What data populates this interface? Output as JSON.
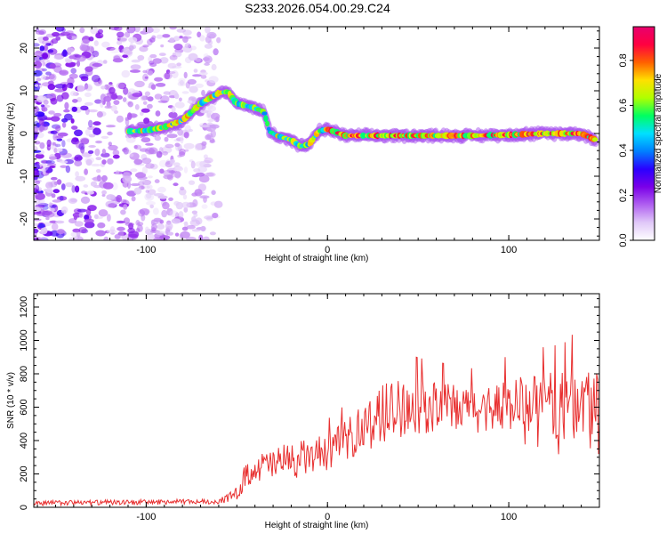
{
  "title": "S233.2026.054.00.29.C24",
  "chart_data": [
    {
      "type": "heatmap",
      "name": "spectrogram",
      "xlabel": "Height of straight line (km)",
      "ylabel": "Frequency (Hz)",
      "xlim": [
        -162,
        150
      ],
      "ylim": [
        -25,
        25
      ],
      "xticks": [
        -100,
        0,
        100
      ],
      "yticks": [
        20,
        10,
        0,
        -10,
        -20
      ],
      "colorbar": {
        "label": "Normalized spectral amplitude",
        "range": [
          0,
          0.95
        ],
        "ticks": [
          0.0,
          0.2,
          0.4,
          0.6,
          0.8
        ],
        "colormap": [
          "#ffffff",
          "#e0c8f8",
          "#b060f0",
          "#7a00e8",
          "#2a00ff",
          "#0080ff",
          "#00e0ff",
          "#00ff60",
          "#b0ff00",
          "#ffe000",
          "#ff6000",
          "#ff0040",
          "#e8006e"
        ]
      },
      "ridge": {
        "description_points_x": [
          -110,
          -100,
          -90,
          -80,
          -70,
          -60,
          -55,
          -50,
          -45,
          -40,
          -35,
          -32,
          -28,
          -20,
          -15,
          -10,
          -5,
          0,
          10,
          20,
          40,
          60,
          80,
          100,
          120,
          140,
          148
        ],
        "description_points_y": [
          0.5,
          0.7,
          1.5,
          3.0,
          7.0,
          9.5,
          9.8,
          7.0,
          6.5,
          6.0,
          5.0,
          0.5,
          -0.5,
          -1.5,
          -3.0,
          -2.5,
          0.5,
          1.0,
          -0.5,
          -0.5,
          -0.5,
          -0.5,
          -0.5,
          -0.3,
          0.0,
          0.0,
          -1.5
        ]
      },
      "noise_region_x": [
        -162,
        -70
      ]
    },
    {
      "type": "line",
      "name": "snr",
      "xlabel": "Height of straight line (km)",
      "ylabel": "SNR (10 * v/v)",
      "xlim": [
        -162,
        150
      ],
      "ylim": [
        0,
        1280
      ],
      "xticks": [
        -100,
        0,
        100
      ],
      "yticks": [
        0,
        200,
        400,
        600,
        800,
        1000,
        1200
      ],
      "color": "#e83030",
      "envelope": {
        "x": [
          -162,
          -60,
          -50,
          -45,
          -40,
          -30,
          -20,
          -10,
          0,
          10,
          20,
          30,
          40,
          60,
          80,
          100,
          120,
          130,
          140,
          145,
          150
        ],
        "mean": [
          25,
          35,
          80,
          200,
          230,
          260,
          280,
          300,
          330,
          400,
          480,
          560,
          600,
          600,
          580,
          620,
          620,
          600,
          640,
          600,
          640
        ],
        "spread": [
          15,
          15,
          40,
          80,
          80,
          100,
          110,
          110,
          110,
          120,
          150,
          180,
          180,
          150,
          140,
          160,
          190,
          210,
          250,
          280,
          220
        ]
      }
    }
  ]
}
